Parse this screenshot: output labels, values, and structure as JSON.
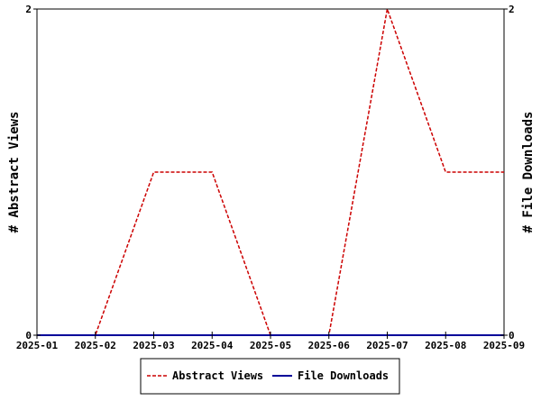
{
  "chart_data": {
    "type": "line",
    "categories": [
      "2025-01",
      "2025-02",
      "2025-03",
      "2025-04",
      "2025-05",
      "2025-06",
      "2025-07",
      "2025-08",
      "2025-09"
    ],
    "series": [
      {
        "name": "Abstract Views",
        "axis": "left",
        "color": "#cc0000",
        "dash": "dashed",
        "values": [
          0,
          0,
          1,
          1,
          0,
          0,
          2,
          1,
          1
        ]
      },
      {
        "name": "File Downloads",
        "axis": "right",
        "color": "#000099",
        "dash": "solid",
        "values": [
          0,
          0,
          0,
          0,
          0,
          0,
          0,
          0,
          0
        ]
      }
    ],
    "ylabel": "# Abstract Views",
    "y2label": "# File Downloads",
    "ylim": [
      0,
      2
    ],
    "y2lim": [
      0,
      2
    ],
    "yticks": [
      "0",
      "2"
    ],
    "y2ticks": [
      "0",
      "2"
    ],
    "grid": false,
    "legend_position": "bottom-center"
  }
}
